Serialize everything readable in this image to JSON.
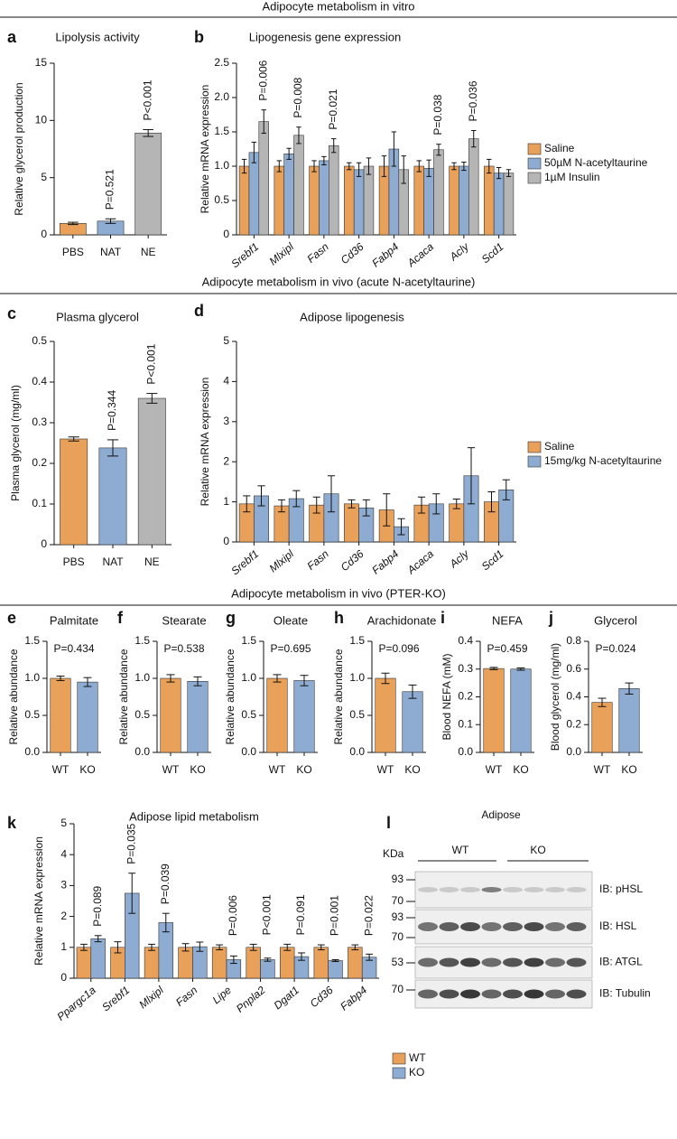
{
  "sections": [
    "Adipocyte metabolism in vitro",
    "Adipocyte metabolism in vivo (acute N-acetyltaurine)",
    "Adipocyte metabolism in vivo (PTER-KO)"
  ],
  "chart_data": [
    {
      "type": "bar",
      "panel": "a",
      "title": "Lipolysis activity",
      "y_label": "Relative glycerol production",
      "categories": [
        "PBS",
        "NAT",
        "NE"
      ],
      "values": [
        1.0,
        1.2,
        8.9
      ],
      "errors": [
        0.1,
        0.2,
        0.3
      ],
      "colors": [
        "#E9A15A",
        "#8EACD1",
        "#B5B5B5"
      ],
      "annotations": [
        null,
        "P=0.521",
        "P<0.001"
      ],
      "ylim": [
        0,
        15
      ],
      "yticks": [
        0,
        5,
        10,
        15
      ]
    },
    {
      "type": "bar",
      "panel": "b",
      "title": "Lipogenesis gene expression",
      "y_label": "Relative mRNA expression",
      "categories": [
        "Srebf1",
        "Mlxipl",
        "Fasn",
        "Cd36",
        "Fabp4",
        "Acaca",
        "Acly",
        "Scd1"
      ],
      "series": [
        {
          "name": "Saline",
          "color": "#E9A15A",
          "values": [
            1.0,
            1.0,
            1.0,
            1.0,
            1.0,
            1.0,
            1.0,
            1.0
          ],
          "errors": [
            0.1,
            0.08,
            0.08,
            0.05,
            0.15,
            0.08,
            0.05,
            0.1
          ]
        },
        {
          "name": "50µM N-acetyltaurine",
          "color": "#8EACD1",
          "values": [
            1.2,
            1.18,
            1.08,
            0.95,
            1.25,
            0.97,
            1.0,
            0.9
          ],
          "errors": [
            0.15,
            0.08,
            0.06,
            0.1,
            0.25,
            0.12,
            0.06,
            0.08
          ]
        },
        {
          "name": "1µM Insulin",
          "color": "#B5B5B5",
          "values": [
            1.65,
            1.45,
            1.3,
            1.0,
            0.95,
            1.24,
            1.4,
            0.9
          ],
          "errors": [
            0.17,
            0.12,
            0.1,
            0.12,
            0.2,
            0.08,
            0.12,
            0.05
          ]
        }
      ],
      "annotations": [
        "P=0.006",
        "P=0.008",
        "P=0.021",
        null,
        null,
        "P=0.038",
        "P=0.036",
        null
      ],
      "ylim": [
        0,
        2.5
      ],
      "yticks": [
        0,
        0.5,
        {
          "value": 1,
          "label": "1.0"
        },
        1.5,
        {
          "value": 2,
          "label": "2.0"
        },
        2.5
      ]
    },
    {
      "type": "bar",
      "panel": "c",
      "title": "Plasma glycerol",
      "y_label": "Plasma glycerol (mg/ml)",
      "categories": [
        "PBS",
        "NAT",
        "NE"
      ],
      "values": [
        0.26,
        0.238,
        0.36
      ],
      "errors": [
        0.005,
        0.02,
        0.012
      ],
      "colors": [
        "#E9A15A",
        "#8EACD1",
        "#B5B5B5"
      ],
      "annotations": [
        null,
        "P=0.344",
        "P<0.001"
      ],
      "ylim": [
        0,
        0.5
      ],
      "yticks": [
        0,
        0.1,
        0.2,
        0.3,
        0.4,
        0.5
      ]
    },
    {
      "type": "bar",
      "panel": "d",
      "title": "Adipose lipogenesis",
      "y_label": "Relative mRNA expression",
      "categories": [
        "Srebf1",
        "Mlxipl",
        "Fasn",
        "Cd36",
        "Fabp4",
        "Acaca",
        "Acly",
        "Scd1"
      ],
      "series": [
        {
          "name": "Saline",
          "color": "#E9A15A",
          "values": [
            0.95,
            0.9,
            0.92,
            0.95,
            0.8,
            0.92,
            0.95,
            1.0
          ],
          "errors": [
            0.2,
            0.15,
            0.2,
            0.1,
            0.4,
            0.2,
            0.12,
            0.25
          ]
        },
        {
          "name": "15mg/kg N-acetyltaurine",
          "color": "#8EACD1",
          "values": [
            1.15,
            1.08,
            1.2,
            0.85,
            0.38,
            0.95,
            1.65,
            1.3
          ],
          "errors": [
            0.25,
            0.2,
            0.45,
            0.2,
            0.2,
            0.25,
            0.7,
            0.25
          ]
        }
      ],
      "ylim": [
        0,
        5
      ],
      "yticks": [
        0,
        1,
        2,
        3,
        4,
        5
      ]
    },
    {
      "type": "bar",
      "panel": "e",
      "title": "Palmitate",
      "y_label": "Relative abundance",
      "annotation": "P=0.434",
      "categories": [
        "WT",
        "KO"
      ],
      "values": [
        1.0,
        0.95
      ],
      "errors": [
        0.03,
        0.06
      ],
      "colors": [
        "#E9A15A",
        "#8EACD1"
      ],
      "ylim": [
        0,
        1.5
      ],
      "yticks": [
        {
          "value": 0,
          "label": "0.0"
        },
        0.5,
        {
          "value": 1,
          "label": "1.0"
        },
        1.5
      ]
    },
    {
      "type": "bar",
      "panel": "f",
      "title": "Stearate",
      "y_label": "Relative abundance",
      "annotation": "P=0.538",
      "categories": [
        "WT",
        "KO"
      ],
      "values": [
        1.0,
        0.96
      ],
      "errors": [
        0.05,
        0.06
      ],
      "colors": [
        "#E9A15A",
        "#8EACD1"
      ],
      "ylim": [
        0,
        1.5
      ],
      "yticks": [
        {
          "value": 0,
          "label": "0.0"
        },
        0.5,
        {
          "value": 1,
          "label": "1.0"
        },
        1.5
      ]
    },
    {
      "type": "bar",
      "panel": "g",
      "title": "Oleate",
      "y_label": "Relative abundance",
      "annotation": "P=0.695",
      "categories": [
        "WT",
        "KO"
      ],
      "values": [
        1.0,
        0.97
      ],
      "errors": [
        0.05,
        0.07
      ],
      "colors": [
        "#E9A15A",
        "#8EACD1"
      ],
      "ylim": [
        0,
        1.5
      ],
      "yticks": [
        {
          "value": 0,
          "label": "0.0"
        },
        0.5,
        {
          "value": 1,
          "label": "1.0"
        },
        1.5
      ]
    },
    {
      "type": "bar",
      "panel": "h",
      "title": "Arachidonate",
      "y_label": "Relative abundance",
      "annotation": "P=0.096",
      "categories": [
        "WT",
        "KO"
      ],
      "values": [
        1.0,
        0.82
      ],
      "errors": [
        0.07,
        0.09
      ],
      "colors": [
        "#E9A15A",
        "#8EACD1"
      ],
      "ylim": [
        0,
        1.5
      ],
      "yticks": [
        {
          "value": 0,
          "label": "0.0"
        },
        0.5,
        {
          "value": 1,
          "label": "1.0"
        },
        1.5
      ]
    },
    {
      "type": "bar",
      "panel": "i",
      "title": "NEFA",
      "y_label": "Blood NEFA (mM)",
      "annotation": "P=0.459",
      "categories": [
        "WT",
        "KO"
      ],
      "values": [
        0.302,
        0.3
      ],
      "errors": [
        0.004,
        0.004
      ],
      "colors": [
        "#E9A15A",
        "#8EACD1"
      ],
      "ylim": [
        0,
        0.4
      ],
      "yticks": [
        {
          "value": 0,
          "label": "0.0"
        },
        0.1,
        0.2,
        0.3,
        0.4
      ]
    },
    {
      "type": "bar",
      "panel": "j",
      "title": "Glycerol",
      "y_label": "Blood glycerol (mg/ml)",
      "annotation": "P=0.024",
      "categories": [
        "WT",
        "KO"
      ],
      "values": [
        0.36,
        0.46
      ],
      "errors": [
        0.03,
        0.04
      ],
      "colors": [
        "#E9A15A",
        "#8EACD1"
      ],
      "ylim": [
        0,
        0.8
      ],
      "yticks": [
        {
          "value": 0,
          "label": "0.0"
        },
        0.2,
        0.4,
        0.6,
        0.8
      ]
    },
    {
      "type": "bar",
      "panel": "k",
      "title": "Adipose lipid metabolism",
      "y_label": "Relative mRNA expression",
      "categories": [
        "Ppargc1a",
        "Srebf1",
        "Mlxipl",
        "Fasn",
        "Lipe",
        "Pnpla2",
        "Dgat1",
        "Cd36",
        "Fabp4"
      ],
      "series": [
        {
          "name": "WT",
          "color": "#E9A15A",
          "values": [
            1.0,
            1.0,
            1.0,
            1.0,
            1.0,
            1.0,
            1.0,
            1.0,
            1.0
          ],
          "errors": [
            0.1,
            0.18,
            0.1,
            0.12,
            0.08,
            0.1,
            0.1,
            0.08,
            0.08
          ]
        },
        {
          "name": "KO",
          "color": "#8EACD1",
          "values": [
            1.28,
            2.75,
            1.8,
            1.02,
            0.6,
            0.6,
            0.7,
            0.57,
            0.68
          ],
          "errors": [
            0.1,
            0.65,
            0.3,
            0.15,
            0.12,
            0.05,
            0.12,
            0.03,
            0.1
          ]
        }
      ],
      "annotations": [
        "P=0.089",
        "P=0.035",
        "P=0.039",
        null,
        "P=0.006",
        "P<0.001",
        "P=0.091",
        "P=0.001",
        "P=0.022"
      ],
      "ylim": [
        0,
        5
      ],
      "yticks": [
        0,
        1,
        2,
        3,
        4,
        5
      ]
    }
  ],
  "blot": {
    "panel": "l",
    "title": "Adipose",
    "unit": "KDa",
    "groups": [
      "WT",
      "KO"
    ],
    "rows": [
      {
        "label": "IB: pHSL",
        "markers": [
          93,
          70
        ]
      },
      {
        "label": "IB: HSL",
        "markers": [
          93,
          70
        ]
      },
      {
        "label": "IB: ATGL",
        "markers": [
          53
        ]
      },
      {
        "label": "IB: Tubulin",
        "markers": [
          70
        ]
      }
    ]
  }
}
